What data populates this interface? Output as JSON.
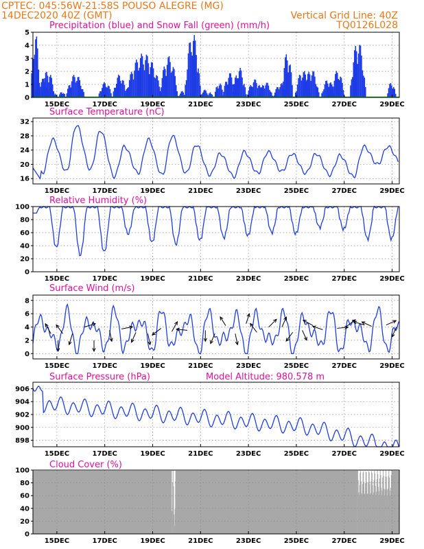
{
  "header": {
    "line1": "CPTEC:   045:56W-21:58S   POUSO ALEGRE (MG)",
    "line2": "14DEC2020 40Z (GMT)",
    "grid_note": "Vertical Grid Line: 40Z",
    "code": "TQ0126L028"
  },
  "colors": {
    "header": "#e87818",
    "title": "#e0109a",
    "series": "#1e3ce6",
    "snow": "#00a000",
    "cloud": "#a8a8a8",
    "arrow": "#000000"
  },
  "x_axis": {
    "range_days": [
      0,
      15.3
    ],
    "ticks": [
      {
        "label": "15DEC",
        "day": 1.0
      },
      {
        "label": "17DEC",
        "day": 3.0
      },
      {
        "label": "19DEC",
        "day": 5.0
      },
      {
        "label": "21DEC",
        "day": 7.0
      },
      {
        "label": "23DEC",
        "day": 9.0
      },
      {
        "label": "25DEC",
        "day": 11.0
      },
      {
        "label": "27DEC",
        "day": 13.0
      },
      {
        "label": "29DEC",
        "day": 15.0
      }
    ]
  },
  "chart_data": [
    {
      "id": "precip",
      "type": "bar",
      "title": "Precipitation (blue) and Snow Fall (green) (mm/h)",
      "ylim": [
        0,
        5
      ],
      "yticks": [
        0,
        1,
        2,
        3,
        4,
        5
      ],
      "series": [
        {
          "name": "Precipitation",
          "color": "#1e3ce6"
        },
        {
          "name": "Snow Fall",
          "color": "#00a000"
        }
      ],
      "events": [
        [
          0.08,
          0.2,
          5.0
        ],
        [
          0.35,
          0.35,
          1.5
        ],
        [
          0.6,
          0.3,
          2.1
        ],
        [
          0.9,
          0.08,
          0.3
        ],
        [
          1.2,
          0.15,
          0.5
        ],
        [
          1.75,
          0.4,
          1.8
        ],
        [
          3.0,
          0.3,
          1.2
        ],
        [
          3.6,
          0.3,
          1.8
        ],
        [
          4.6,
          0.8,
          3.4
        ],
        [
          5.65,
          0.4,
          3.2
        ],
        [
          6.2,
          0.15,
          0.5
        ],
        [
          6.65,
          0.35,
          5.0
        ],
        [
          7.15,
          0.2,
          0.6
        ],
        [
          7.4,
          0.1,
          0.5
        ],
        [
          7.75,
          0.2,
          1.2
        ],
        [
          8.2,
          0.3,
          1.9
        ],
        [
          8.6,
          0.3,
          2.3
        ],
        [
          9.25,
          0.35,
          1.4
        ],
        [
          9.7,
          0.3,
          1.2
        ],
        [
          10.35,
          0.35,
          1.1
        ],
        [
          10.6,
          0.25,
          3.5
        ],
        [
          11.25,
          0.35,
          2.1
        ],
        [
          11.6,
          0.35,
          2.2
        ],
        [
          12.3,
          0.3,
          1.4
        ],
        [
          12.7,
          0.3,
          2.1
        ],
        [
          13.55,
          0.35,
          4.4
        ],
        [
          14.95,
          0.2,
          1.2
        ]
      ]
    },
    {
      "id": "temp",
      "type": "line",
      "title": "Surface Temperature (nC)",
      "ylim": [
        14.5,
        33
      ],
      "yticks": [
        16,
        20,
        24,
        28,
        32
      ],
      "tmin": [
        15.5,
        17.5,
        18.0,
        18.5,
        16.5,
        17.5,
        17.0,
        17.5,
        17.0,
        16.5,
        17.5,
        18.0,
        17.5,
        17.0,
        16.5,
        20.0
      ],
      "tmax": [
        25.0,
        27.0,
        31.0,
        29.5,
        25.0,
        27.0,
        28.0,
        25.5,
        23.0,
        23.5,
        23.5,
        23.0,
        23.0,
        22.5,
        25.0
      ]
    },
    {
      "id": "rh",
      "type": "line",
      "title": "Relative Humidity (%)",
      "ylim": [
        0,
        100
      ],
      "yticks": [
        0,
        20,
        40,
        60,
        80,
        100
      ],
      "rhmin": [
        65,
        37,
        25,
        30,
        58,
        45,
        42,
        48,
        52,
        55,
        60,
        58,
        68,
        65,
        50
      ]
    },
    {
      "id": "wind",
      "type": "line",
      "title": "Surface Wind (m/s)",
      "ylim": [
        -0.8,
        8.8
      ],
      "yticks": [
        0,
        2,
        4,
        6,
        8
      ],
      "arrows": [
        [
          0.75,
          3,
          -0.5,
          0.9
        ],
        [
          1.05,
          2,
          0,
          -1
        ],
        [
          1.25,
          3,
          -0.6,
          0.8
        ],
        [
          1.65,
          3,
          -0.3,
          -1
        ],
        [
          2.15,
          4,
          1,
          0.3
        ],
        [
          2.55,
          2,
          0,
          -1
        ],
        [
          3.2,
          3.5,
          0.2,
          -1
        ],
        [
          3.7,
          3.7,
          1,
          0.2
        ],
        [
          4.3,
          3.2,
          -0.4,
          -0.9
        ],
        [
          4.8,
          3,
          0.2,
          -1
        ],
        [
          5.35,
          3.8,
          -0.8,
          -0.6
        ],
        [
          5.8,
          3.3,
          0.5,
          0.9
        ],
        [
          6.45,
          3.5,
          -1,
          0.1
        ],
        [
          7.2,
          3.5,
          0,
          -1
        ],
        [
          7.6,
          3,
          -0.4,
          -0.9
        ],
        [
          8.05,
          4.2,
          -0.5,
          0.8
        ],
        [
          8.45,
          3,
          0.2,
          -1
        ],
        [
          8.9,
          4.5,
          0.3,
          0.9
        ],
        [
          9.35,
          3.2,
          -0.6,
          0.8
        ],
        [
          9.85,
          4,
          0.7,
          0.7
        ],
        [
          10.4,
          4,
          0.4,
          0.9
        ],
        [
          10.85,
          3.2,
          -0.6,
          -0.8
        ],
        [
          11.25,
          3.5,
          0.4,
          -0.9
        ],
        [
          11.7,
          4.2,
          -0.9,
          0.5
        ],
        [
          12.1,
          3.6,
          -0.9,
          0.3
        ],
        [
          12.7,
          3.8,
          1,
          0.1
        ],
        [
          13.1,
          4.1,
          0.8,
          0.6
        ],
        [
          13.85,
          4.3,
          -1,
          0.3
        ],
        [
          14.15,
          4.1,
          -0.9,
          0.4
        ],
        [
          14.75,
          4.3,
          0.9,
          0.4
        ],
        [
          15.18,
          4,
          -0.4,
          -0.9
        ]
      ]
    },
    {
      "id": "pres",
      "type": "line",
      "title": "Surface Pressure (hPa)",
      "title_right": "Model Altitude: 980.578 m",
      "ylim": [
        897,
        907
      ],
      "yticks": [
        898,
        900,
        902,
        904,
        906
      ],
      "start_value": 906.0,
      "end_value": 897.3
    },
    {
      "id": "cloud",
      "type": "area",
      "title": "Cloud Cover (%)",
      "ylim": [
        0,
        100
      ],
      "yticks": [
        0,
        20,
        40,
        60,
        80,
        100
      ],
      "full_cover": [
        [
          0,
          5.8
        ],
        [
          5.95,
          13.55
        ],
        [
          14.98,
          15.3
        ]
      ],
      "gaps": [
        [
          5.8,
          5.95,
          12
        ],
        [
          13.55,
          14.98,
          60
        ]
      ]
    }
  ]
}
